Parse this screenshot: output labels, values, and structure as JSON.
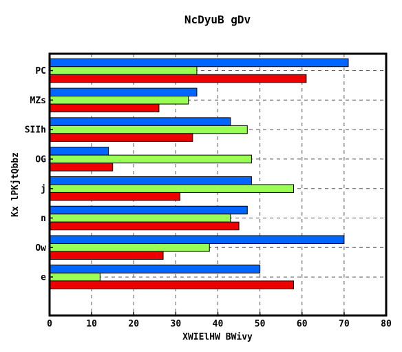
{
  "chart_data": {
    "type": "bar",
    "orientation": "horizontal",
    "title": "NcDyuB gDv",
    "xlabel": "XWIElHW  BWivy",
    "ylabel": "Kx  lPKjtQbbz",
    "categories": [
      "PC",
      "MZs",
      "SIIh",
      "OG",
      "j",
      "n",
      "Ow",
      "e"
    ],
    "series": [
      {
        "color": "#0066ff",
        "values": [
          71,
          35,
          43,
          14,
          48,
          47,
          70,
          50
        ]
      },
      {
        "color": "#99ff55",
        "values": [
          35,
          33,
          47,
          48,
          58,
          43,
          38,
          12
        ]
      },
      {
        "color": "#ee0000",
        "values": [
          61,
          26,
          34,
          15,
          31,
          45,
          27,
          58
        ]
      }
    ],
    "xlim": [
      0,
      80
    ],
    "xticks": [
      0,
      10,
      20,
      30,
      40,
      50,
      60,
      70,
      80
    ],
    "grid": true,
    "grid_style": "dashed",
    "legend": "none"
  }
}
